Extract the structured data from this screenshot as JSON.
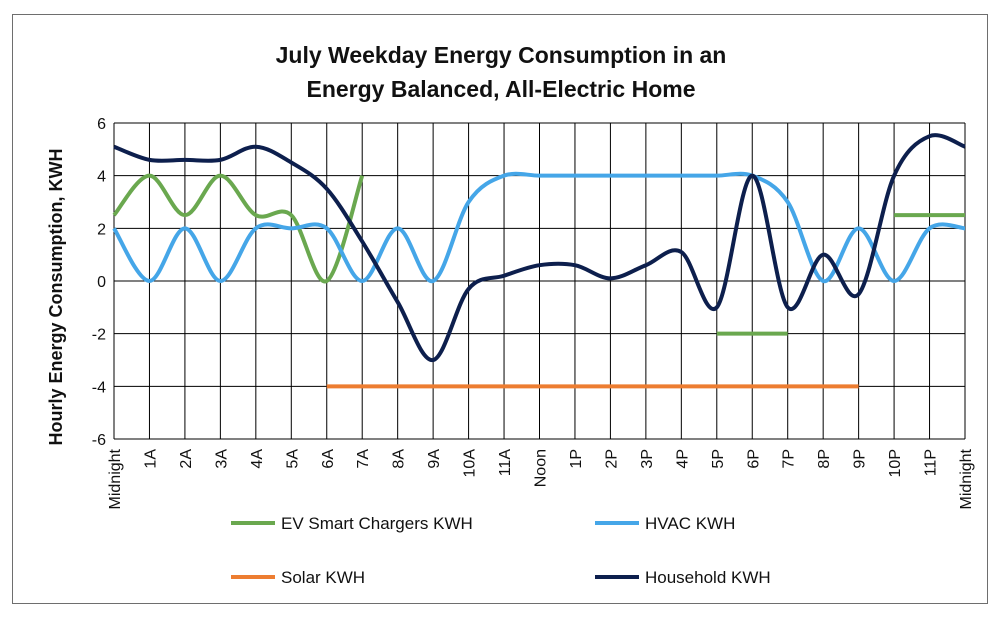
{
  "chart_data": {
    "type": "line",
    "title_lines": [
      "July Weekday Energy Consumption in an",
      "Energy Balanced, All-Electric Home"
    ],
    "ylabel": "Hourly Energy Consumption, KWH",
    "xlabel": "",
    "categories": [
      "Midnight",
      "1A",
      "2A",
      "3A",
      "4A",
      "5A",
      "6A",
      "7A",
      "8A",
      "9A",
      "10A",
      "11A",
      "Noon",
      "1P",
      "2P",
      "3P",
      "4P",
      "5P",
      "6P",
      "7P",
      "8P",
      "9P",
      "10P",
      "11P",
      "Midnight"
    ],
    "yticks": [
      -6,
      -4,
      -2,
      0,
      2,
      4,
      6
    ],
    "ylim": [
      -6,
      6
    ],
    "grid": true,
    "legend_position": "bottom",
    "series": [
      {
        "name": "EV Smart Chargers KWH",
        "color": "#6aa84f",
        "smooth": true,
        "segments": [
          [
            [
              0,
              2.5
            ],
            [
              1,
              4
            ],
            [
              2,
              2.5
            ],
            [
              3,
              4
            ],
            [
              4,
              2.5
            ],
            [
              5,
              2.5
            ],
            [
              6,
              0
            ],
            [
              7,
              4
            ]
          ],
          [
            [
              17,
              -2
            ],
            [
              19,
              -2
            ]
          ],
          [
            [
              22,
              2.5
            ],
            [
              24,
              2.5
            ]
          ]
        ]
      },
      {
        "name": "HVAC KWH",
        "color": "#45a6e8",
        "smooth": true,
        "segments": [
          [
            [
              0,
              2
            ],
            [
              1,
              0
            ],
            [
              2,
              2
            ],
            [
              3,
              0
            ],
            [
              4,
              2
            ],
            [
              5,
              2
            ],
            [
              6,
              2
            ],
            [
              7,
              0
            ],
            [
              8,
              2
            ],
            [
              9,
              0
            ],
            [
              10,
              3
            ],
            [
              11,
              4
            ],
            [
              12,
              4
            ],
            [
              13,
              4
            ],
            [
              14,
              4
            ],
            [
              15,
              4
            ],
            [
              16,
              4
            ],
            [
              17,
              4
            ],
            [
              18,
              4
            ],
            [
              19,
              3
            ],
            [
              20,
              0
            ],
            [
              21,
              2
            ],
            [
              22,
              0
            ],
            [
              23,
              2
            ],
            [
              24,
              2
            ]
          ]
        ]
      },
      {
        "name": "Solar KWH",
        "color": "#ed7d31",
        "smooth": false,
        "segments": [
          [
            [
              6,
              -4
            ],
            [
              21,
              -4
            ]
          ]
        ]
      },
      {
        "name": "Household KWH",
        "color": "#0d1f4d",
        "smooth": true,
        "segments": [
          [
            [
              0,
              5.1
            ],
            [
              1,
              4.6
            ],
            [
              2,
              4.6
            ],
            [
              3,
              4.6
            ],
            [
              4,
              5.1
            ],
            [
              5,
              4.5
            ],
            [
              6,
              3.5
            ],
            [
              7,
              1.5
            ],
            [
              8,
              -0.8
            ],
            [
              9,
              -3
            ],
            [
              10,
              -0.3
            ],
            [
              11,
              0.2
            ],
            [
              12,
              0.6
            ],
            [
              13,
              0.6
            ],
            [
              14,
              0.1
            ],
            [
              15,
              0.6
            ],
            [
              16,
              1.1
            ],
            [
              17,
              -1
            ],
            [
              18,
              4
            ],
            [
              19,
              -1
            ],
            [
              20,
              1
            ],
            [
              21,
              -0.5
            ],
            [
              22,
              4
            ],
            [
              23,
              5.5
            ],
            [
              24,
              5.1
            ]
          ]
        ]
      }
    ]
  }
}
